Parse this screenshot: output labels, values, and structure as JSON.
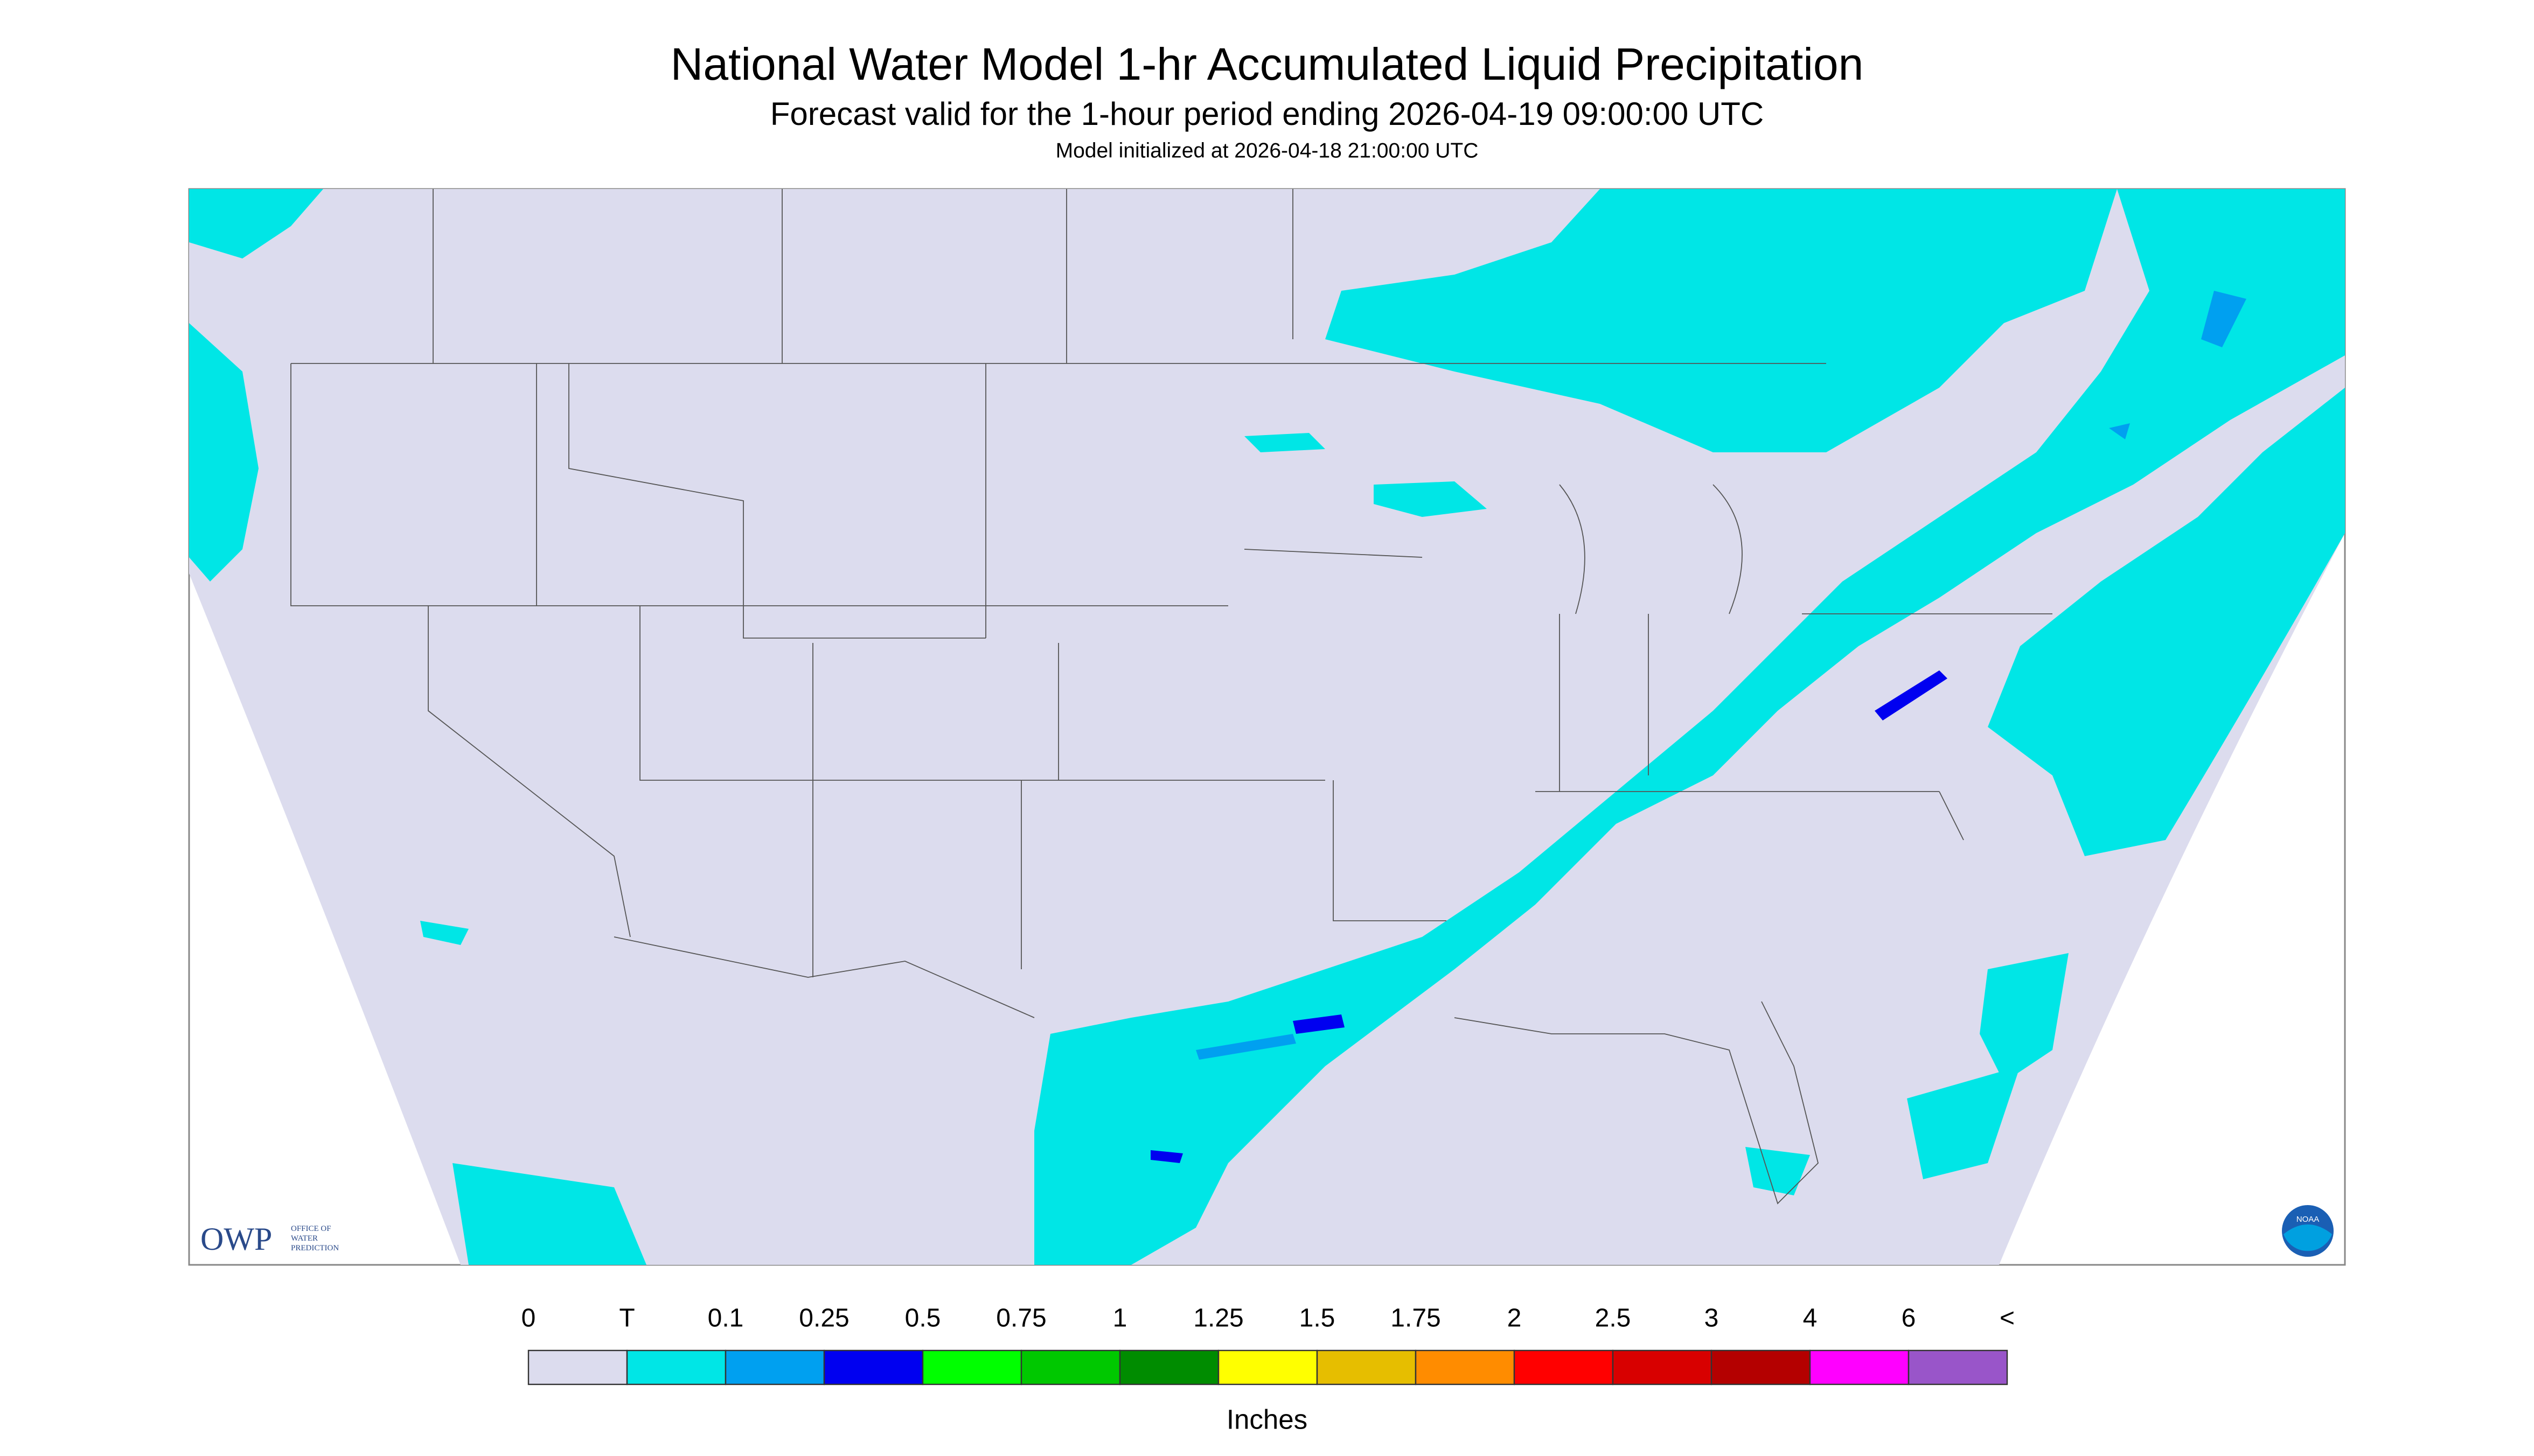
{
  "header": {
    "title": "National Water Model 1-hr Accumulated Liquid Precipitation",
    "subtitle": "Forecast valid for the 1-hour period ending 2026-04-19 09:00:00 UTC",
    "init": "Model initialized at 2026-04-18 21:00:00 UTC"
  },
  "legend": {
    "labels": [
      "0",
      "T",
      "0.1",
      "0.25",
      "0.5",
      "0.75",
      "1",
      "1.25",
      "1.5",
      "1.75",
      "2",
      "2.5",
      "3",
      "4",
      "6",
      "<"
    ],
    "colors": [
      "#dcdcee",
      "#00e6e6",
      "#00a0f0",
      "#0000f0",
      "#00ff00",
      "#00c800",
      "#008c00",
      "#ffff00",
      "#e6be00",
      "#ff8c00",
      "#ff0000",
      "#d80000",
      "#b40000",
      "#ff00ff",
      "#9955c9"
    ],
    "unit": "Inches"
  },
  "logos": {
    "owp": "OWP",
    "owp_lines": [
      "OFFICE OF",
      "WATER",
      "PREDICTION"
    ],
    "noaa": "NOAA"
  }
}
